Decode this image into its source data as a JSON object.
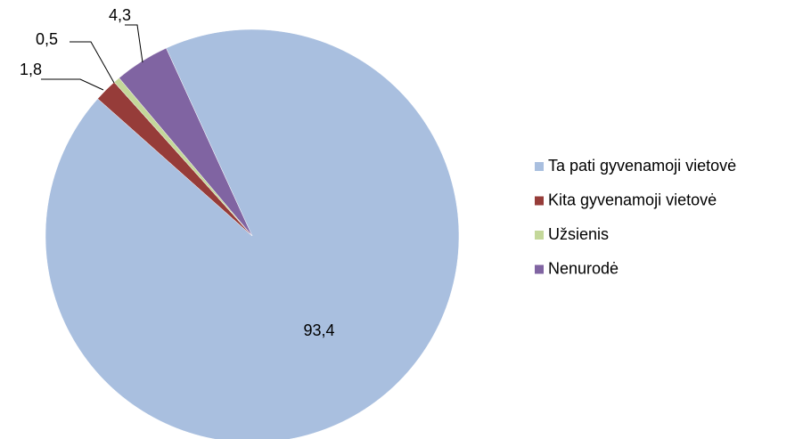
{
  "chart_data": {
    "type": "pie",
    "categories": [
      "Ta pati gyvenamoji vietovė",
      "Kita gyvenamoji vietovė",
      "Užsienis",
      "Nenurodė"
    ],
    "values": [
      93.4,
      1.8,
      0.5,
      4.3
    ],
    "value_labels": [
      "93,4",
      "1,8",
      "0,5",
      "4,3"
    ],
    "colors": [
      "#a9bfdf",
      "#963c39",
      "#c4d89a",
      "#8064a2"
    ]
  }
}
